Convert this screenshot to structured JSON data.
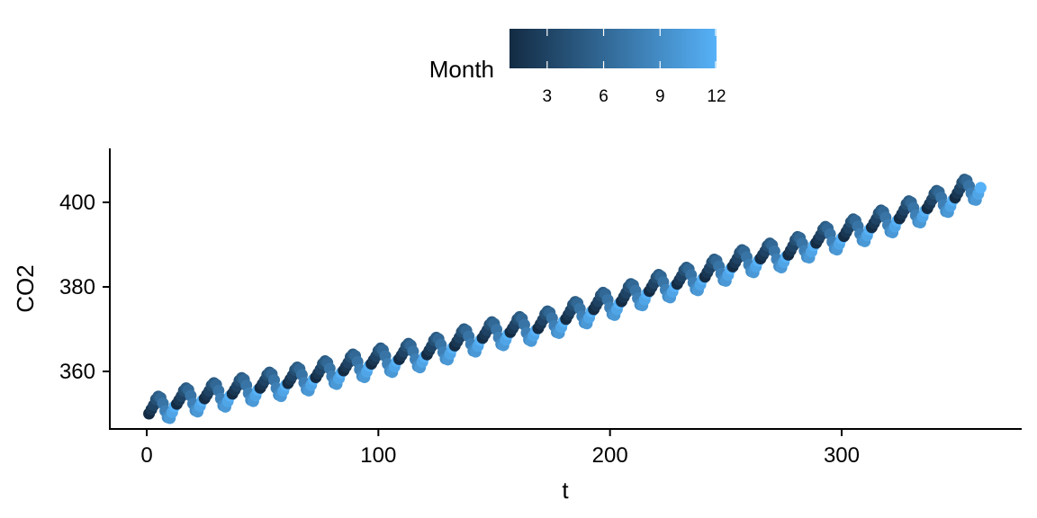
{
  "chart_data": {
    "type": "scatter",
    "title": "",
    "xlabel": "t",
    "ylabel": "CO2",
    "xlim": [
      -15,
      375
    ],
    "ylim": [
      345.5,
      412.5
    ],
    "x_ticks": [
      0,
      100,
      200,
      300
    ],
    "x_tick_labels": [
      "0",
      "100",
      "200",
      "300"
    ],
    "y_ticks": [
      360,
      380,
      400
    ],
    "y_tick_labels": [
      "360",
      "380",
      "400"
    ],
    "grid": false,
    "legend": {
      "title": "Month",
      "position": "top",
      "type": "colorbar",
      "range": [
        1,
        12
      ],
      "ticks": [
        3,
        6,
        9,
        12
      ],
      "tick_labels": [
        "3",
        "6",
        "9",
        "12"
      ],
      "low_color": "#132B43",
      "high_color": "#56B1F7"
    },
    "series": [
      {
        "t_start": 1,
        "t_end": 360,
        "color_by": "Month",
        "month_of_t1": 1,
        "yearly_start_values": [
          350.4,
          352.7,
          354.0,
          355.1,
          356.5,
          357.6,
          359.0,
          360.6,
          362.2,
          363.3,
          364.4,
          366.5,
          368.3,
          369.7,
          370.6,
          372.8,
          375.1,
          377.0,
          379.4,
          381.1,
          382.8,
          385.2,
          387.1,
          388.0,
          390.8,
          392.4,
          394.5,
          396.6,
          399.0,
          401.5,
          404.5
        ],
        "seasonal_offsets": [
          -0.4,
          0.4,
          1.2,
          2.4,
          2.9,
          2.4,
          0.9,
          -1.1,
          -2.8,
          -3.2,
          -2.0,
          -0.8
        ]
      }
    ]
  }
}
